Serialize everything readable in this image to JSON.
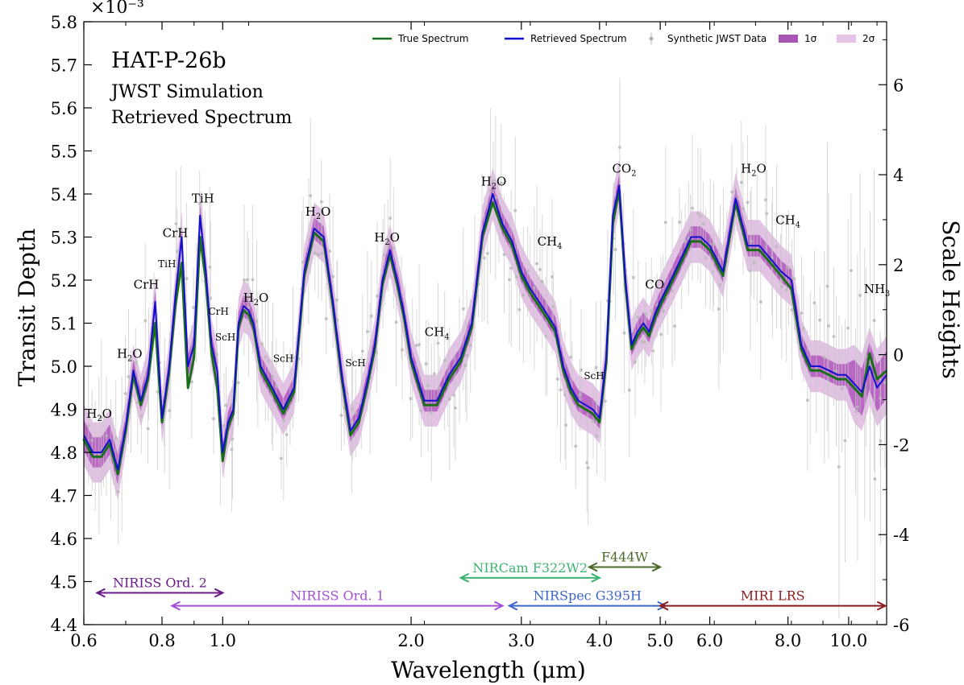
{
  "chart_data": {
    "type": "line",
    "title": "HAT-P-26b",
    "subtitle_lines": [
      "JWST Simulation",
      "Retrieved Spectrum"
    ],
    "xlabel": "Wavelength (μm)",
    "ylabel": "Transit Depth",
    "y2label": "Scale Heights",
    "y_multiplier": "×10⁻³",
    "xscale": "log",
    "xlim": [
      0.6,
      11.5
    ],
    "ylim": [
      4.4,
      5.8
    ],
    "y2lim": [
      -6.0,
      7.4
    ],
    "x_ticks": [
      {
        "v": 0.6,
        "label": "0.6"
      },
      {
        "v": 0.8,
        "label": "0.8"
      },
      {
        "v": 1.0,
        "label": "1.0"
      },
      {
        "v": 2.0,
        "label": "2.0"
      },
      {
        "v": 3.0,
        "label": "3.0"
      },
      {
        "v": 4.0,
        "label": "4.0"
      },
      {
        "v": 5.0,
        "label": "5.0"
      },
      {
        "v": 6.0,
        "label": "6.0"
      },
      {
        "v": 8.0,
        "label": "8.0"
      },
      {
        "v": 10.0,
        "label": "10.0"
      }
    ],
    "y_ticks": [
      {
        "v": 4.4,
        "label": "4.4"
      },
      {
        "v": 4.5,
        "label": "4.5"
      },
      {
        "v": 4.6,
        "label": "4.6"
      },
      {
        "v": 4.7,
        "label": "4.7"
      },
      {
        "v": 4.8,
        "label": "4.8"
      },
      {
        "v": 4.9,
        "label": "4.9"
      },
      {
        "v": 5.0,
        "label": "5.0"
      },
      {
        "v": 5.1,
        "label": "5.1"
      },
      {
        "v": 5.2,
        "label": "5.2"
      },
      {
        "v": 5.3,
        "label": "5.3"
      },
      {
        "v": 5.4,
        "label": "5.4"
      },
      {
        "v": 5.5,
        "label": "5.5"
      },
      {
        "v": 5.6,
        "label": "5.6"
      },
      {
        "v": 5.7,
        "label": "5.7"
      },
      {
        "v": 5.8,
        "label": "5.8"
      }
    ],
    "y2_ticks": [
      {
        "v": -6,
        "label": "-6"
      },
      {
        "v": -4,
        "label": "-4"
      },
      {
        "v": -2,
        "label": "-2"
      },
      {
        "v": 0,
        "label": "0"
      },
      {
        "v": 2,
        "label": "2"
      },
      {
        "v": 4,
        "label": "4"
      },
      {
        "v": 6,
        "label": "6"
      }
    ],
    "legend": {
      "placement": "top-right",
      "entries": [
        {
          "label": "True Spectrum",
          "kind": "line",
          "color": "#1a6e1a"
        },
        {
          "label": "Retrieved Spectrum",
          "kind": "line",
          "color": "#1010cc"
        },
        {
          "label": "Synthetic JWST Data",
          "kind": "errorbar",
          "color": "#b0b0b0"
        },
        {
          "label": "1σ",
          "kind": "patch",
          "color": "#a855b5"
        },
        {
          "label": "2σ",
          "kind": "patch",
          "color": "#e3c2e6"
        }
      ]
    },
    "series": [
      {
        "name": "Retrieved Spectrum",
        "color": "#1010cc",
        "x": [
          0.6,
          0.62,
          0.64,
          0.66,
          0.68,
          0.7,
          0.72,
          0.74,
          0.76,
          0.78,
          0.8,
          0.82,
          0.84,
          0.86,
          0.88,
          0.9,
          0.92,
          0.94,
          0.96,
          0.98,
          1.0,
          1.02,
          1.04,
          1.06,
          1.08,
          1.1,
          1.12,
          1.15,
          1.2,
          1.25,
          1.3,
          1.35,
          1.4,
          1.45,
          1.5,
          1.55,
          1.6,
          1.65,
          1.7,
          1.75,
          1.8,
          1.85,
          1.9,
          1.95,
          2.0,
          2.1,
          2.2,
          2.3,
          2.4,
          2.5,
          2.6,
          2.7,
          2.8,
          2.9,
          3.0,
          3.1,
          3.2,
          3.3,
          3.4,
          3.5,
          3.6,
          3.7,
          3.8,
          3.9,
          4.0,
          4.1,
          4.2,
          4.3,
          4.4,
          4.5,
          4.6,
          4.7,
          4.8,
          4.9,
          5.0,
          5.2,
          5.4,
          5.6,
          5.8,
          6.0,
          6.3,
          6.6,
          6.9,
          7.2,
          7.5,
          7.8,
          8.1,
          8.4,
          8.7,
          9.0,
          9.3,
          9.6,
          9.9,
          10.2,
          10.5,
          10.8,
          11.1,
          11.5
        ],
        "y": [
          4.84,
          4.8,
          4.8,
          4.83,
          4.76,
          4.86,
          4.99,
          4.92,
          4.98,
          5.15,
          4.88,
          4.99,
          5.16,
          5.3,
          5.0,
          5.05,
          5.35,
          5.22,
          5.05,
          4.99,
          4.8,
          4.87,
          4.9,
          5.1,
          5.14,
          5.13,
          5.1,
          5.0,
          4.95,
          4.9,
          4.95,
          5.22,
          5.32,
          5.3,
          5.15,
          4.98,
          4.85,
          4.88,
          4.96,
          5.05,
          5.2,
          5.27,
          5.2,
          5.12,
          5.02,
          4.92,
          4.92,
          4.98,
          5.02,
          5.1,
          5.31,
          5.4,
          5.33,
          5.29,
          5.22,
          5.18,
          5.15,
          5.12,
          5.09,
          5.0,
          4.95,
          4.92,
          4.91,
          4.9,
          4.88,
          5.02,
          5.35,
          5.42,
          5.2,
          5.05,
          5.08,
          5.1,
          5.08,
          5.12,
          5.15,
          5.2,
          5.25,
          5.3,
          5.3,
          5.28,
          5.22,
          5.39,
          5.28,
          5.28,
          5.25,
          5.22,
          5.2,
          5.05,
          5.0,
          5.0,
          4.99,
          4.98,
          4.98,
          4.96,
          4.94,
          5.0,
          4.95,
          4.98
        ]
      },
      {
        "name": "True Spectrum",
        "color": "#1a6e1a",
        "x": [
          0.6,
          0.62,
          0.64,
          0.66,
          0.68,
          0.7,
          0.72,
          0.74,
          0.76,
          0.78,
          0.8,
          0.82,
          0.84,
          0.86,
          0.88,
          0.9,
          0.92,
          0.94,
          0.96,
          0.98,
          1.0,
          1.02,
          1.04,
          1.06,
          1.08,
          1.1,
          1.12,
          1.15,
          1.2,
          1.25,
          1.3,
          1.35,
          1.4,
          1.45,
          1.5,
          1.55,
          1.6,
          1.65,
          1.7,
          1.75,
          1.8,
          1.85,
          1.9,
          1.95,
          2.0,
          2.1,
          2.2,
          2.3,
          2.4,
          2.5,
          2.6,
          2.7,
          2.8,
          2.9,
          3.0,
          3.1,
          3.2,
          3.3,
          3.4,
          3.5,
          3.6,
          3.7,
          3.8,
          3.9,
          4.0,
          4.1,
          4.2,
          4.3,
          4.4,
          4.5,
          4.6,
          4.7,
          4.8,
          4.9,
          5.0,
          5.2,
          5.4,
          5.6,
          5.8,
          6.0,
          6.3,
          6.6,
          6.9,
          7.2,
          7.5,
          7.8,
          8.1,
          8.4,
          8.7,
          9.0,
          9.3,
          9.6,
          9.9,
          10.2,
          10.5,
          10.8,
          11.1,
          11.5
        ],
        "y": [
          4.83,
          4.79,
          4.79,
          4.82,
          4.75,
          4.85,
          4.98,
          4.91,
          4.97,
          5.1,
          4.87,
          4.98,
          5.14,
          5.24,
          4.95,
          5.02,
          5.3,
          5.2,
          5.03,
          4.95,
          4.78,
          4.86,
          4.89,
          5.09,
          5.13,
          5.12,
          5.09,
          4.99,
          4.94,
          4.89,
          4.94,
          5.21,
          5.31,
          5.29,
          5.14,
          4.97,
          4.84,
          4.87,
          4.95,
          5.04,
          5.19,
          5.26,
          5.19,
          5.11,
          5.01,
          4.91,
          4.91,
          4.97,
          5.01,
          5.09,
          5.3,
          5.38,
          5.32,
          5.28,
          5.21,
          5.17,
          5.14,
          5.11,
          5.08,
          4.99,
          4.94,
          4.91,
          4.9,
          4.89,
          4.87,
          5.01,
          5.33,
          5.41,
          5.19,
          5.04,
          5.07,
          5.09,
          5.07,
          5.11,
          5.14,
          5.19,
          5.24,
          5.29,
          5.29,
          5.27,
          5.21,
          5.38,
          5.27,
          5.27,
          5.24,
          5.21,
          5.18,
          5.04,
          4.99,
          4.99,
          4.98,
          4.97,
          4.97,
          4.95,
          4.93,
          5.03,
          4.97,
          4.99
        ]
      }
    ],
    "confidence_band_halfwidths": {
      "1σ": 0.025,
      "2σ": 0.06
    },
    "synthetic_data_scatter": {
      "noise": 0.08,
      "errorbar": 0.12
    },
    "molecule_labels": [
      {
        "x": 0.635,
        "y": 4.88,
        "label": "H",
        "sub": "2",
        "rest": "O"
      },
      {
        "x": 0.71,
        "y": 5.02,
        "label": "H",
        "sub": "2",
        "rest": "O"
      },
      {
        "x": 0.755,
        "y": 5.18,
        "label": "CrH"
      },
      {
        "x": 0.84,
        "y": 5.3,
        "label": "CrH"
      },
      {
        "x": 0.815,
        "y": 5.23,
        "label": "TiH",
        "small": true
      },
      {
        "x": 0.93,
        "y": 5.38,
        "label": "TiH"
      },
      {
        "x": 0.985,
        "y": 5.12,
        "label": "CrH",
        "small": true
      },
      {
        "x": 1.01,
        "y": 5.06,
        "label": "ScH",
        "small": true
      },
      {
        "x": 1.13,
        "y": 5.15,
        "label": "H",
        "sub": "2",
        "rest": "O"
      },
      {
        "x": 1.25,
        "y": 5.01,
        "label": "ScH",
        "small": true
      },
      {
        "x": 1.42,
        "y": 5.35,
        "label": "H",
        "sub": "2",
        "rest": "O"
      },
      {
        "x": 1.63,
        "y": 5.0,
        "label": "ScH",
        "small": true
      },
      {
        "x": 1.83,
        "y": 5.29,
        "label": "H",
        "sub": "2",
        "rest": "O"
      },
      {
        "x": 2.2,
        "y": 5.07,
        "label": "CH",
        "sub": "4",
        "rest": ""
      },
      {
        "x": 2.71,
        "y": 5.42,
        "label": "H",
        "sub": "2",
        "rest": "O"
      },
      {
        "x": 3.33,
        "y": 5.28,
        "label": "CH",
        "sub": "4",
        "rest": ""
      },
      {
        "x": 3.92,
        "y": 4.97,
        "label": "ScH",
        "small": true
      },
      {
        "x": 4.38,
        "y": 5.45,
        "label": "CO",
        "sub": "2",
        "rest": ""
      },
      {
        "x": 4.9,
        "y": 5.18,
        "label": "CO"
      },
      {
        "x": 7.05,
        "y": 5.45,
        "label": "H",
        "sub": "2",
        "rest": "O"
      },
      {
        "x": 8.0,
        "y": 5.33,
        "label": "CH",
        "sub": "4",
        "rest": ""
      },
      {
        "x": 11.1,
        "y": 5.17,
        "label": "NH",
        "sub": "3",
        "rest": ""
      }
    ],
    "instrument_ranges": [
      {
        "label": "NIRISS Ord. 2",
        "x0": 0.63,
        "x1": 1.0,
        "y": 4.47,
        "color": "#6a1a8a"
      },
      {
        "label": "NIRISS Ord. 1",
        "x0": 0.83,
        "x1": 2.8,
        "y": 4.44,
        "color": "#a14fd6"
      },
      {
        "label": "NIRCam F322W2",
        "x0": 2.4,
        "x1": 4.0,
        "y": 4.505,
        "color": "#3cb371"
      },
      {
        "label": "F444W",
        "x0": 3.85,
        "x1": 5.0,
        "y": 4.53,
        "color": "#4b6b2a"
      },
      {
        "label": "NIRSpec G395H",
        "x0": 2.87,
        "x1": 5.1,
        "y": 4.44,
        "color": "#3b66c9"
      },
      {
        "label": "MIRI LRS",
        "x0": 5.0,
        "x1": 11.5,
        "y": 4.44,
        "color": "#8b1a1a"
      }
    ]
  }
}
